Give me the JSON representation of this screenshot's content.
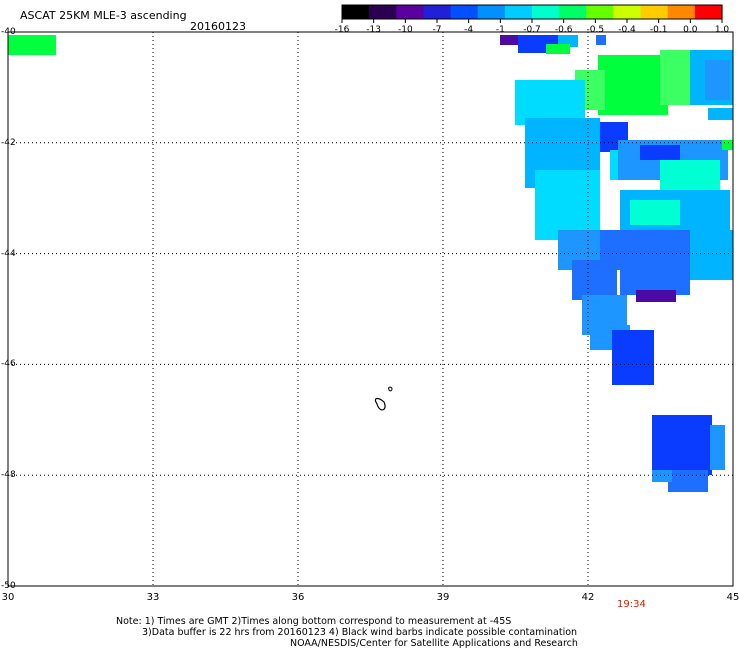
{
  "header": {
    "title": "ASCAT 25KM MLE-3 ascending",
    "date": "20160123"
  },
  "colorbar": {
    "labels": [
      "-16",
      "-13",
      "-10",
      "-7",
      "-4",
      "-1",
      "-0.7",
      "-0.6",
      "-0.5",
      "-0.4",
      "-0.1",
      "0.0",
      "1.0"
    ],
    "colors": [
      "#000000",
      "#2a0050",
      "#5a00a0",
      "#2020d8",
      "#0050ff",
      "#0090ff",
      "#00ccff",
      "#00ffcc",
      "#00ff66",
      "#66ff00",
      "#ccff00",
      "#ffcc00",
      "#ff8800",
      "#ff0000"
    ]
  },
  "map": {
    "lon_labels": [
      "30",
      "33",
      "36",
      "39",
      "42",
      "45"
    ],
    "lat_labels": [
      "-40",
      "-42",
      "-44",
      "-46",
      "-48",
      "-50"
    ],
    "lon_range": [
      30,
      45
    ],
    "lat_range": [
      -50,
      -40
    ],
    "grid": "dotted",
    "colors": {
      "purple": "#4b0aa0",
      "blue": "#0a3cff",
      "medium_blue": "#1e6eff",
      "light_blue": "#1e96ff",
      "cyan_blue": "#00b4ff",
      "cyan": "#00dcff",
      "aqua": "#00ffd2",
      "green": "#00ff3c",
      "light_green": "#3cff64"
    },
    "pass_time": "19:34"
  },
  "notes": {
    "line1": "Note: 1) Times are GMT 2)Times along bottom correspond to measurement at -45S",
    "line2": "3)Data buffer is 22 hrs from 20160123 4) Black wind barbs indicate possible contamination",
    "line3": "NOAA/NESDIS/Center for Satellite Applications and Research"
  }
}
